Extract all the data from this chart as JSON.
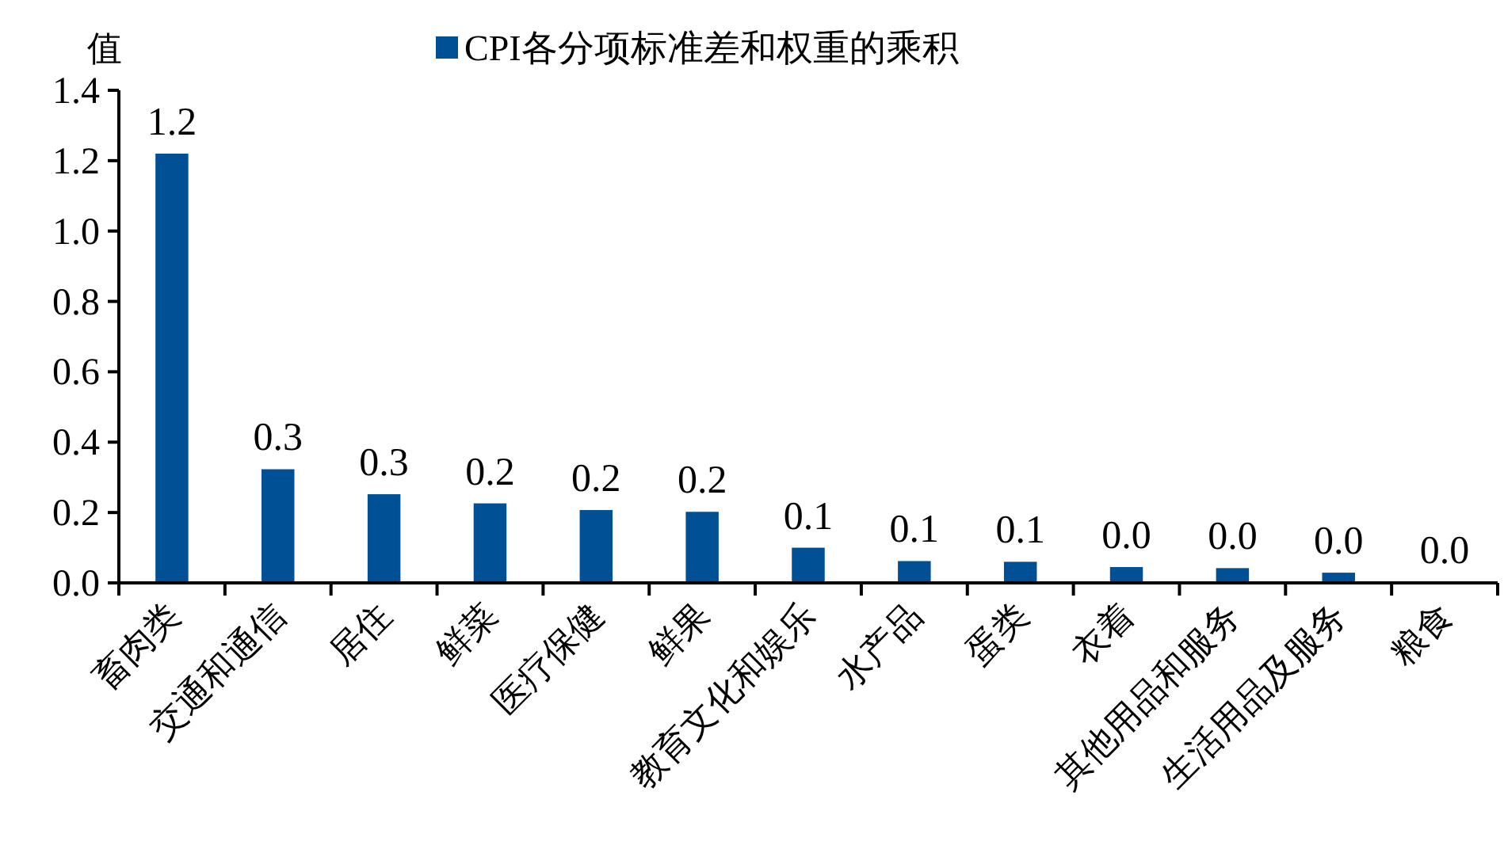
{
  "chart_data": {
    "type": "bar",
    "ylabel": "值",
    "categories": [
      "畜肉类",
      "交通和通信",
      "居住",
      "鲜菜",
      "医疗保健",
      "鲜果",
      "教育文化和娱乐",
      "水产品",
      "蛋类",
      "衣着",
      "其他用品和服务",
      "生活用品及服务",
      "粮食"
    ],
    "series": [
      {
        "name": "CPI各分项标准差和权重的乘积",
        "color": "#005096",
        "values": [
          1.22,
          0.323,
          0.252,
          0.226,
          0.207,
          0.202,
          0.1,
          0.062,
          0.06,
          0.045,
          0.042,
          0.029,
          0.003
        ],
        "value_labels": [
          "1.2",
          "0.3",
          "0.3",
          "0.2",
          "0.2",
          "0.2",
          "0.1",
          "0.1",
          "0.1",
          "0.0",
          "0.0",
          "0.0",
          "0.0"
        ]
      }
    ],
    "ylim": [
      0,
      1.4
    ],
    "yticks": [
      {
        "value": 0,
        "label": "0.0"
      },
      0.2,
      0.4,
      0.6,
      0.8,
      {
        "value": 1,
        "label": "1.0"
      },
      1.2,
      1.4
    ],
    "legend": "top",
    "grid": false
  }
}
